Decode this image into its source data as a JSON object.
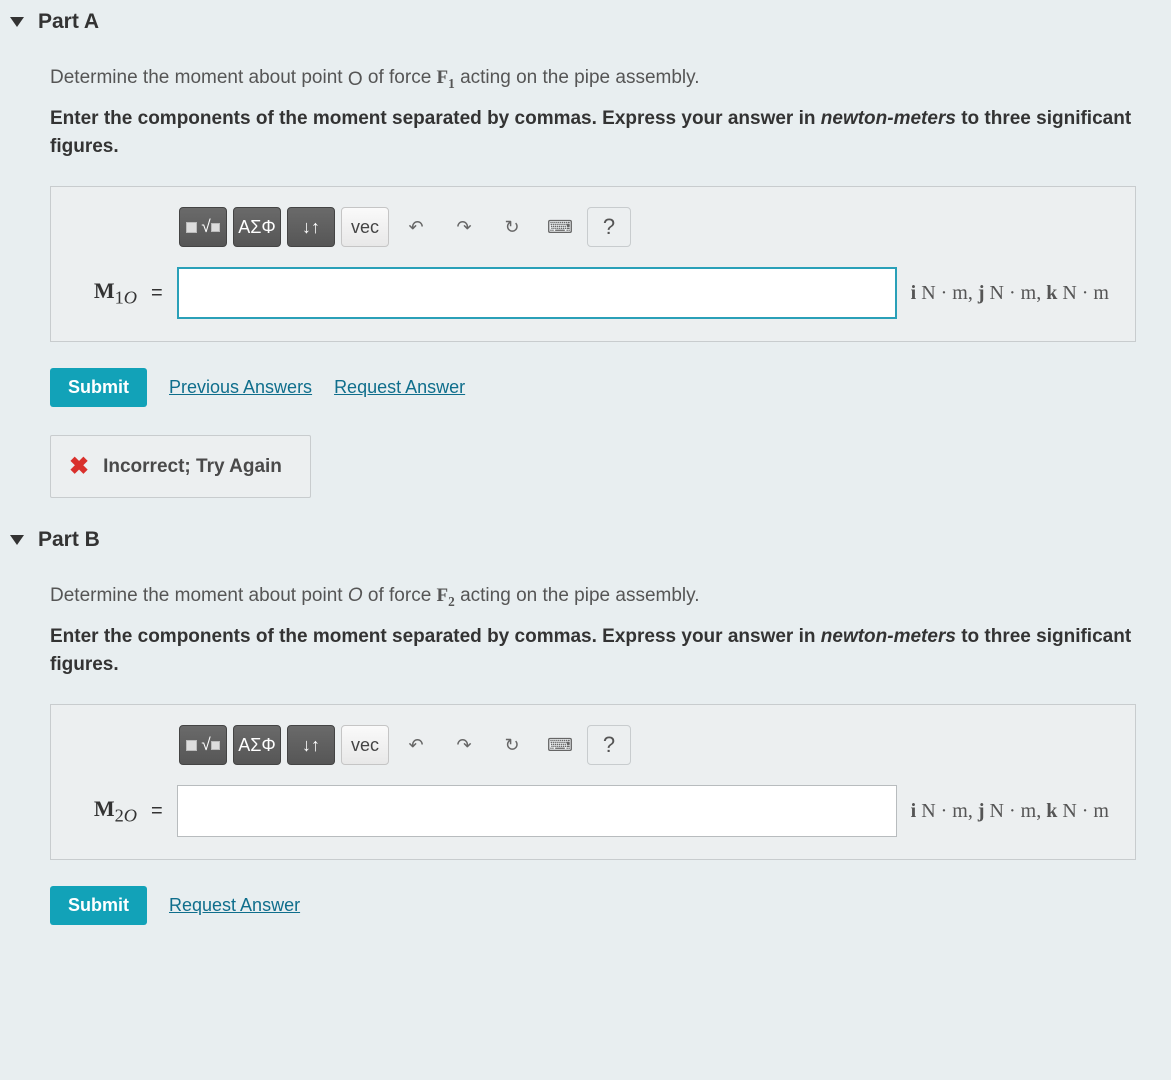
{
  "partA": {
    "title": "Part A",
    "prompt_html": "Determine the moment about point <span class=\"cursor-img\">O</span> of force <span class=\"bold-var\">F<sub>1</sub></span>  acting on the pipe assembly.",
    "instr_html": "<b>Enter the components of the moment separated by commas. Express your answer in</b> <i>newton-meters</i> <b>to three significant figures.</b>",
    "var_label_html": "<b>M</b><sub>1<i>O</i></sub>",
    "units_html": "<span class=\"uvec\">i</span> N · m, <span class=\"uvec\">j</span> N · m, <span class=\"uvec\">k</span> N · m",
    "input_value": "",
    "input_focused": true,
    "links": {
      "prev": "Previous Answers",
      "req": "Request Answer"
    },
    "show_prev": true,
    "feedback": "Incorrect; Try Again"
  },
  "partB": {
    "title": "Part B",
    "prompt_html": "Determine the moment about point <i>O</i> of force <span class=\"bold-var\">F<sub>2</sub></span>  acting on the pipe assembly.",
    "instr_html": "<b>Enter the components of the moment separated by commas. Express your answer in</b> <i>newton-meters</i> <b>to three significant figures.</b>",
    "var_label_html": "<b>M</b><sub>2<i>O</i></sub>",
    "units_html": "<span class=\"uvec\">i</span> N · m, <span class=\"uvec\">j</span> N · m, <span class=\"uvec\">k</span> N · m",
    "input_value": "",
    "input_focused": false,
    "links": {
      "req": "Request Answer"
    },
    "show_prev": false,
    "feedback": null
  },
  "toolbar": {
    "template_title": "template",
    "greek": "ΑΣΦ",
    "subsup": "↓↑",
    "vec": "vec",
    "undo": "↶",
    "redo": "↷",
    "reset": "↻",
    "keyboard": "⌨",
    "help": "?"
  },
  "buttons": {
    "submit": "Submit"
  },
  "colors": {
    "accent": "#12a2b8",
    "link": "#0f6e8c",
    "error": "#d9302c",
    "panel_bg": "#eceff0",
    "panel_border": "#c8ccce"
  }
}
